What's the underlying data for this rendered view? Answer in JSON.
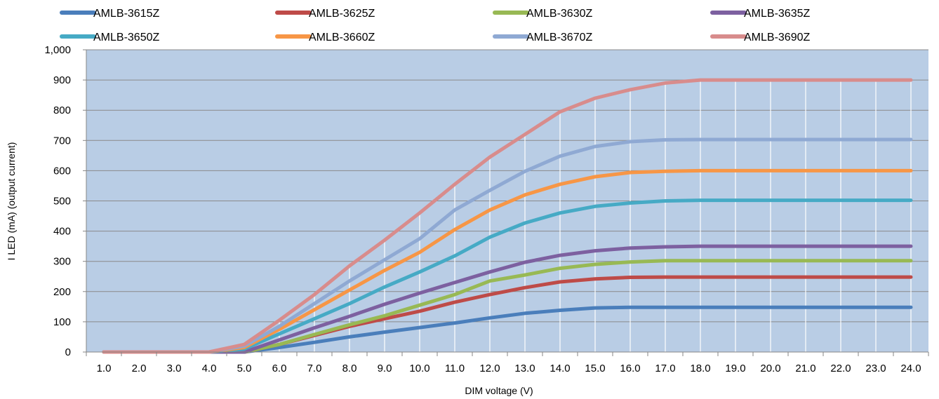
{
  "chart_data": {
    "type": "line",
    "title": "",
    "xlabel": "DIM voltage (V)",
    "ylabel": "I LED (mA) (output current)",
    "ylim": [
      0,
      1000
    ],
    "y_ticks": [
      "0",
      "100",
      "200",
      "300",
      "400",
      "500",
      "600",
      "700",
      "800",
      "900",
      "1,000"
    ],
    "categories": [
      "1.0",
      "2.0",
      "3.0",
      "4.0",
      "5.0",
      "6.0",
      "7.0",
      "8.0",
      "9.0",
      "10.0",
      "11.0",
      "12.0",
      "13.0",
      "14.0",
      "15.0",
      "16.0",
      "17.0",
      "18.0",
      "19.0",
      "20.0",
      "21.0",
      "22.0",
      "23.0",
      "24.0"
    ],
    "grid": "horizontal gridlines; vertical white lines at categories",
    "plot_background": "#B9CDE5",
    "legend_position": "top",
    "series": [
      {
        "name": "AMLB-3615Z",
        "color": "#4A7EBB",
        "values": [
          0,
          0,
          0,
          0,
          0,
          15,
          32,
          50,
          66,
          81,
          96,
          113,
          128,
          138,
          146,
          148,
          148,
          148,
          148,
          148,
          148,
          148,
          148,
          148
        ]
      },
      {
        "name": "AMLB-3625Z",
        "color": "#BE4B48",
        "values": [
          0,
          0,
          0,
          0,
          0,
          25,
          55,
          85,
          110,
          135,
          165,
          190,
          213,
          232,
          242,
          247,
          248,
          248,
          248,
          248,
          248,
          248,
          248,
          248
        ]
      },
      {
        "name": "AMLB-3630Z",
        "color": "#98B954",
        "values": [
          0,
          0,
          0,
          0,
          0,
          25,
          58,
          90,
          120,
          155,
          190,
          235,
          255,
          277,
          290,
          298,
          302,
          302,
          302,
          302,
          302,
          302,
          302,
          302
        ]
      },
      {
        "name": "AMLB-3635Z",
        "color": "#7D60A0",
        "values": [
          0,
          0,
          0,
          0,
          0,
          40,
          80,
          118,
          158,
          195,
          230,
          265,
          297,
          320,
          335,
          344,
          348,
          350,
          350,
          350,
          350,
          350,
          350,
          350
        ]
      },
      {
        "name": "AMLB-3650Z",
        "color": "#46AAC5",
        "values": [
          0,
          0,
          0,
          0,
          10,
          60,
          110,
          160,
          215,
          265,
          318,
          380,
          427,
          460,
          482,
          493,
          500,
          502,
          502,
          502,
          502,
          502,
          502,
          502
        ]
      },
      {
        "name": "AMLB-3660Z",
        "color": "#F79646",
        "values": [
          0,
          0,
          0,
          0,
          15,
          75,
          140,
          205,
          270,
          330,
          405,
          470,
          520,
          555,
          580,
          594,
          598,
          600,
          600,
          600,
          600,
          600,
          600,
          600
        ]
      },
      {
        "name": "AMLB-3670Z",
        "color": "#8FA9D3",
        "values": [
          0,
          0,
          0,
          0,
          20,
          85,
          160,
          235,
          305,
          375,
          470,
          535,
          598,
          648,
          680,
          696,
          702,
          703,
          703,
          703,
          703,
          703,
          703,
          703
        ]
      },
      {
        "name": "AMLB-3690Z",
        "color": "#D88C8C",
        "values": [
          0,
          0,
          0,
          0,
          25,
          105,
          190,
          285,
          370,
          460,
          555,
          645,
          720,
          795,
          840,
          868,
          890,
          900,
          900,
          900,
          900,
          900,
          900,
          900
        ]
      }
    ]
  }
}
